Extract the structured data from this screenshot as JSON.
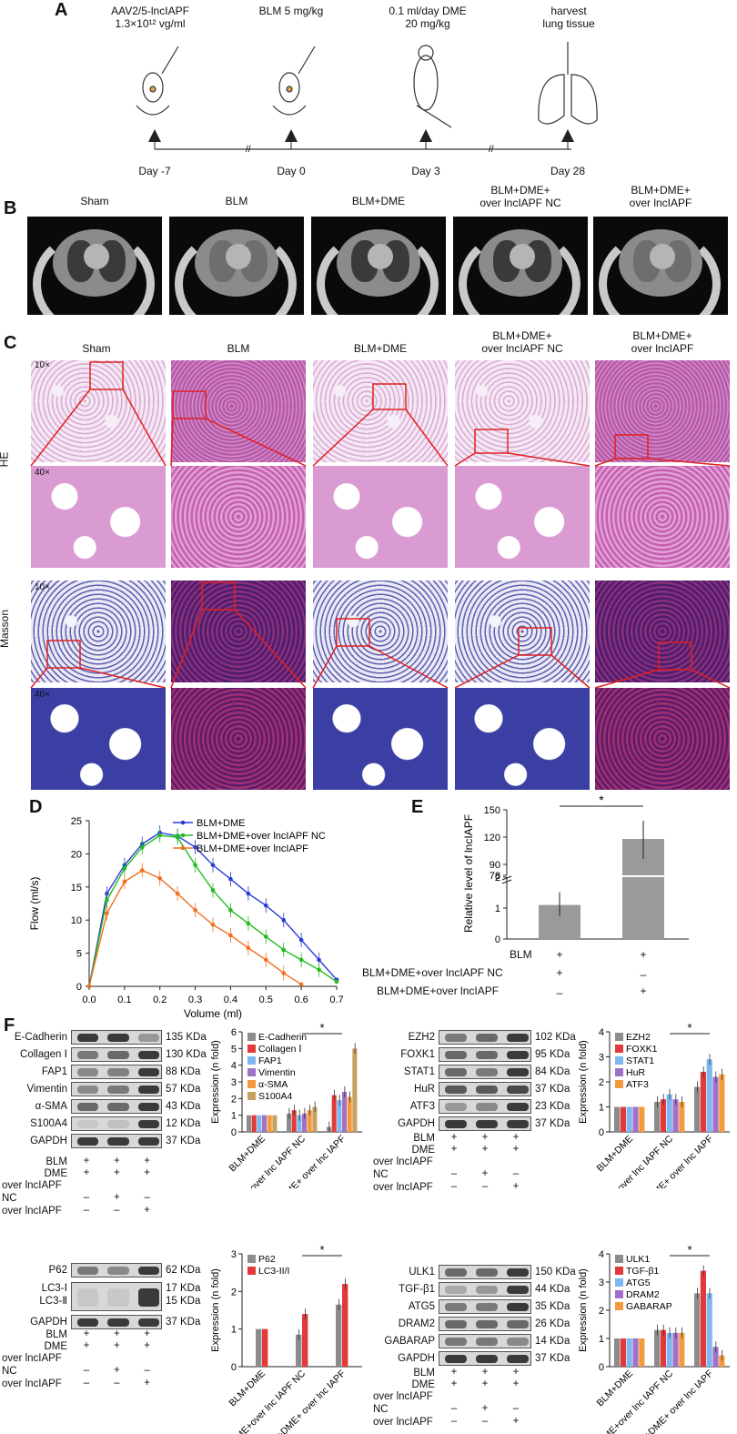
{
  "panel_letters": {
    "A": "A",
    "B": "B",
    "C": "C",
    "D": "D",
    "E": "E",
    "F": "F"
  },
  "timeline": [
    {
      "top": "AAV2/5-lncIAPF",
      "top2": "1.3×10¹² vg/ml",
      "day": "Day -7"
    },
    {
      "top": "BLM 5 mg/kg",
      "top2": "",
      "day": "Day 0"
    },
    {
      "top": "0.1 ml/day DME",
      "top2": "20 mg/kg",
      "day": "Day 3"
    },
    {
      "top": "harvest",
      "top2": "lung tissue",
      "day": "Day 28"
    }
  ],
  "groups_b": [
    "Sham",
    "BLM",
    "BLM+DME",
    "BLM+DME+\nover lncIAPF NC",
    "BLM+DME+\nover lncIAPF"
  ],
  "groups_c": [
    "Sham",
    "BLM",
    "BLM+DME",
    "BLM+DME+\nover lncIAPF NC",
    "BLM+DME+\nover lncIAPF"
  ],
  "stains": {
    "he": "HE",
    "masson": "Masson",
    "mag10": "10×",
    "mag40": "40×"
  },
  "chart_data": [
    {
      "panel": "D",
      "type": "line",
      "xlabel": "Volume (ml)",
      "ylabel": "Flow (ml/s)",
      "xlim": [
        0,
        0.7
      ],
      "ylim": [
        0,
        25
      ],
      "xticks": [
        "0.0",
        "0.1",
        "0.2",
        "0.3",
        "0.4",
        "0.5",
        "0.6",
        "0.7"
      ],
      "yticks": [
        "0",
        "5",
        "10",
        "15",
        "20",
        "25"
      ],
      "legend_position": "top-right",
      "series": [
        {
          "name": "BLM+DME",
          "color": "#2a3ad8",
          "x": [
            0,
            0.05,
            0.1,
            0.15,
            0.2,
            0.25,
            0.3,
            0.35,
            0.4,
            0.45,
            0.5,
            0.55,
            0.6,
            0.65,
            0.7
          ],
          "y": [
            0,
            14,
            18.3,
            21.5,
            23.2,
            22.7,
            21,
            18.3,
            16.2,
            14,
            12.2,
            10,
            7,
            4,
            1
          ]
        },
        {
          "name": "BLM+DME+over lncIAPF NC",
          "color": "#22bb22",
          "x": [
            0,
            0.05,
            0.1,
            0.15,
            0.2,
            0.25,
            0.3,
            0.35,
            0.4,
            0.45,
            0.5,
            0.55,
            0.6,
            0.65,
            0.7
          ],
          "y": [
            0,
            13,
            17.8,
            21,
            22.8,
            22.5,
            18.3,
            14.5,
            11.5,
            9.5,
            7.5,
            5.5,
            4,
            2.5,
            0.7
          ]
        },
        {
          "name": "BLM+DME+over lncIAPF",
          "color": "#f07020",
          "x": [
            0,
            0.05,
            0.1,
            0.15,
            0.2,
            0.25,
            0.3,
            0.35,
            0.4,
            0.45,
            0.5,
            0.55,
            0.6
          ],
          "y": [
            0,
            11,
            15.8,
            17.5,
            16.3,
            14,
            11.5,
            9.3,
            7.7,
            5.8,
            4,
            2,
            0.3
          ]
        }
      ]
    },
    {
      "panel": "E",
      "type": "bar",
      "ylabel": "Relative level of lncIAPF",
      "yticks_low": [
        "0",
        "1",
        "2"
      ],
      "yticks_high": [
        "78",
        "90",
        "120",
        "150"
      ],
      "values": [
        1.1,
        118
      ],
      "color": "#9a9a9a",
      "annotation": "*",
      "rows": [
        {
          "label": "BLM",
          "signs": [
            "+",
            "+"
          ]
        },
        {
          "label": "BLM+DME+over lncIAPF NC",
          "signs": [
            "+",
            "–"
          ]
        },
        {
          "label": "BLM+DME+over lncIAPF",
          "signs": [
            "–",
            "+"
          ]
        }
      ]
    },
    {
      "panel": "F1",
      "type": "bar",
      "ylabel": "Expression (n fold)",
      "ylim": [
        0,
        6
      ],
      "yticks": [
        "0",
        "1",
        "2",
        "3",
        "4",
        "5",
        "6"
      ],
      "categories": [
        "BLM+DME",
        "BLM+DME+over lnc IAPF NC",
        "BLM+DME+ over lnc IAPF"
      ],
      "annotation": "*",
      "series": [
        {
          "name": "E-Cadherin",
          "color": "#8c8c8c",
          "values": [
            1,
            1.1,
            0.3
          ]
        },
        {
          "name": "Collagen Ⅰ",
          "color": "#e23a3a",
          "values": [
            1,
            1.3,
            2.2
          ]
        },
        {
          "name": "FAP1",
          "color": "#7fb6ee",
          "values": [
            1,
            1.0,
            1.9
          ]
        },
        {
          "name": "Vimentin",
          "color": "#a071c8",
          "values": [
            1,
            1.1,
            2.4
          ]
        },
        {
          "name": "α-SMA",
          "color": "#f59a3c",
          "values": [
            1,
            1.3,
            2.1
          ]
        },
        {
          "name": "S100A4",
          "color": "#c8a060",
          "values": [
            1,
            1.5,
            5.0
          ]
        }
      ]
    },
    {
      "panel": "F2",
      "type": "bar",
      "ylabel": "Expression (n fold)",
      "ylim": [
        0,
        4
      ],
      "yticks": [
        "0",
        "1",
        "2",
        "3",
        "4"
      ],
      "categories": [
        "BLM+DME",
        "BLM+DME+over lnc IAPF NC",
        "BLM+DME+ over lnc IAPF"
      ],
      "annotation": "*",
      "series": [
        {
          "name": "EZH2",
          "color": "#8c8c8c",
          "values": [
            1,
            1.2,
            1.8
          ]
        },
        {
          "name": "FOXK1",
          "color": "#e23a3a",
          "values": [
            1,
            1.3,
            2.4
          ]
        },
        {
          "name": "STAT1",
          "color": "#7fb6ee",
          "values": [
            1,
            1.5,
            2.9
          ]
        },
        {
          "name": "HuR",
          "color": "#a071c8",
          "values": [
            1,
            1.3,
            2.2
          ]
        },
        {
          "name": "ATF3",
          "color": "#f59a3c",
          "values": [
            1,
            1.2,
            2.3
          ]
        }
      ]
    },
    {
      "panel": "F3",
      "type": "bar",
      "ylabel": "Expression (n fold)",
      "ylim": [
        0,
        3
      ],
      "yticks": [
        "0",
        "1",
        "2",
        "3"
      ],
      "categories": [
        "BLM+DME",
        "BLM+DME+over lnc IAPF NC",
        "BLM+DME+ over lnc IAPF"
      ],
      "annotation": "*",
      "series": [
        {
          "name": "P62",
          "color": "#8c8c8c",
          "values": [
            1,
            0.85,
            1.65
          ]
        },
        {
          "name": "LC3-II/I",
          "color": "#e23a3a",
          "values": [
            1,
            1.4,
            2.2
          ]
        }
      ]
    },
    {
      "panel": "F4",
      "type": "bar",
      "ylabel": "Expression (n fold)",
      "ylim": [
        0,
        4
      ],
      "yticks": [
        "0",
        "1",
        "2",
        "3",
        "4"
      ],
      "categories": [
        "BLM+DME",
        "BLM+DME+over lnc IAPF NC",
        "BLM+DME+ over lnc IAPF"
      ],
      "annotation": "*",
      "series": [
        {
          "name": "ULK1",
          "color": "#8c8c8c",
          "values": [
            1,
            1.3,
            2.6
          ]
        },
        {
          "name": "TGF-β1",
          "color": "#e23a3a",
          "values": [
            1,
            1.3,
            3.4
          ]
        },
        {
          "name": "ATG5",
          "color": "#7fb6ee",
          "values": [
            1,
            1.2,
            2.6
          ]
        },
        {
          "name": "DRAM2",
          "color": "#a071c8",
          "values": [
            1,
            1.2,
            0.7
          ]
        },
        {
          "name": "GABARAP",
          "color": "#f59a3c",
          "values": [
            1,
            1.2,
            0.4
          ]
        }
      ]
    }
  ],
  "blots": [
    {
      "id": "b1",
      "rows": [
        [
          "E-Cadherin",
          "135 KDa"
        ],
        [
          "Collagen Ⅰ",
          "130 KDa"
        ],
        [
          "FAP1",
          "88 KDa"
        ],
        [
          "Vimentin",
          "57 KDa"
        ],
        [
          "α-SMA",
          "43 KDa"
        ],
        [
          "S100A4",
          "12 KDa"
        ],
        [
          "GAPDH",
          "37 KDa"
        ]
      ]
    },
    {
      "id": "b2",
      "rows": [
        [
          "EZH2",
          "102 KDa"
        ],
        [
          "FOXK1",
          "95 KDa"
        ],
        [
          "STAT1",
          "84 KDa"
        ],
        [
          "HuR",
          "37 KDa"
        ],
        [
          "ATF3",
          "23 KDa"
        ],
        [
          "GAPDH",
          "37 KDa"
        ]
      ]
    },
    {
      "id": "b3",
      "rows": [
        [
          "P62",
          "62 KDa"
        ],
        [
          "LC3-Ⅰ\nLC3-Ⅱ",
          "17 KDa\n15 KDa"
        ],
        [
          "GAPDH",
          "37 KDa"
        ]
      ]
    },
    {
      "id": "b4",
      "rows": [
        [
          "ULK1",
          "150 KDa"
        ],
        [
          "TGF-β1",
          "44 KDa"
        ],
        [
          "ATG5",
          "35 KDa"
        ],
        [
          "DRAM2",
          "26 KDa"
        ],
        [
          "GABARAP",
          "14 KDa"
        ],
        [
          "GAPDH",
          "37 KDa"
        ]
      ]
    }
  ],
  "treatment_rows": [
    {
      "label": "BLM",
      "signs": [
        "+",
        "+",
        "+"
      ]
    },
    {
      "label": "DME",
      "signs": [
        "+",
        "+",
        "+"
      ]
    },
    {
      "label": "over lncIAPF\nNC",
      "signs": [
        "–",
        "+",
        "–"
      ]
    },
    {
      "label": "over lncIAPF",
      "signs": [
        "–",
        "–",
        "+"
      ]
    }
  ]
}
